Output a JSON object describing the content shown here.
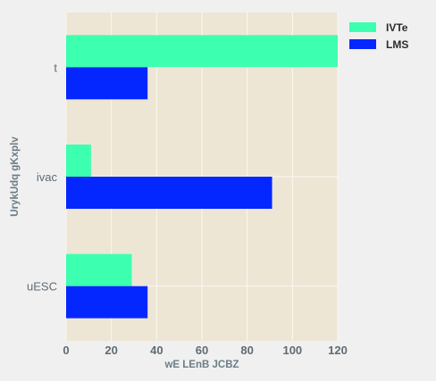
{
  "chart_data": {
    "type": "bar",
    "orientation": "horizontal",
    "categories": [
      "t",
      "ivac",
      "uESC"
    ],
    "series": [
      {
        "name": "IVTe",
        "values": [
          120,
          11,
          29
        ],
        "color": "#3dffb0"
      },
      {
        "name": "LMS",
        "values": [
          36,
          91,
          36
        ],
        "color": "#0527ff"
      }
    ],
    "xlabel": "wE LEnB JCBZ",
    "ylabel": "UrykUdq gKxplv",
    "xlim": [
      0,
      120
    ],
    "xticks": [
      0,
      20,
      40,
      60,
      80,
      100,
      120
    ],
    "grid": true,
    "legend_position": "top-right",
    "plot_background": "#ede6d5",
    "grid_color": "#fbf8ef"
  }
}
